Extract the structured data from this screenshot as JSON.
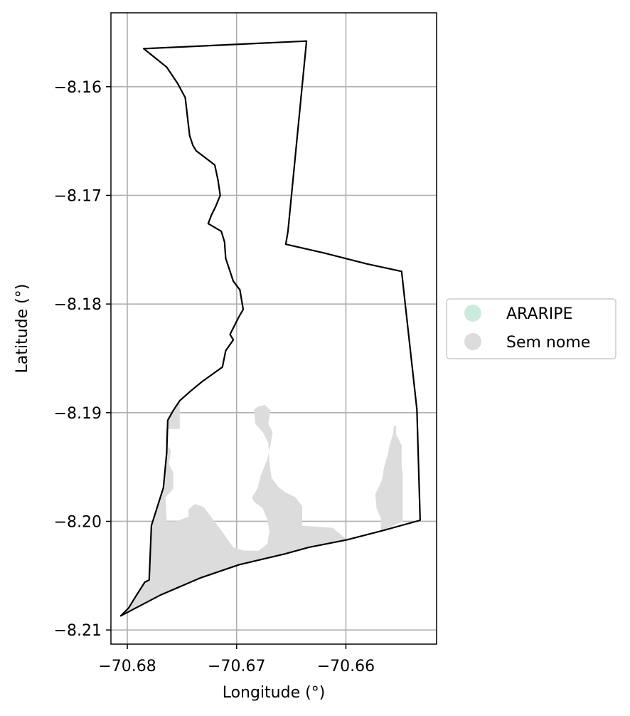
{
  "chart_data": {
    "type": "map",
    "xlabel": "Longitude (°)",
    "ylabel": "Latitude (°)",
    "xlim": [
      -70.6815,
      -70.6517
    ],
    "ylim": [
      -8.2113,
      -8.1532
    ],
    "x_ticks": [
      {
        "value": -70.68,
        "label": "−70.68"
      },
      {
        "value": -70.67,
        "label": "−70.67"
      },
      {
        "value": -70.66,
        "label": "−70.66"
      }
    ],
    "y_ticks": [
      {
        "value": -8.16,
        "label": "−8.16"
      },
      {
        "value": -8.17,
        "label": "−8.17"
      },
      {
        "value": -8.18,
        "label": "−8.18"
      },
      {
        "value": -8.19,
        "label": "−8.19"
      },
      {
        "value": -8.2,
        "label": "−8.20"
      },
      {
        "value": -8.21,
        "label": "−8.21"
      }
    ],
    "grid": true,
    "legend": {
      "placement": "right",
      "entries": [
        {
          "label": "ARARIPE",
          "color": "#cdebdc"
        },
        {
          "label": "Sem nome",
          "color": "#dcdcdc"
        }
      ]
    },
    "boundary": {
      "stroke": "#000000",
      "coords": [
        [
          -70.6785,
          -8.1565
        ],
        [
          -70.6636,
          -8.1558
        ],
        [
          -70.6653,
          -8.1733
        ],
        [
          -70.6655,
          -8.1745
        ],
        [
          -70.662,
          -8.1753
        ],
        [
          -70.6581,
          -8.1763
        ],
        [
          -70.6549,
          -8.177
        ],
        [
          -70.6535,
          -8.1897
        ],
        [
          -70.6532,
          -8.1999
        ],
        [
          -70.6568,
          -8.2009
        ],
        [
          -70.6599,
          -8.2017
        ],
        [
          -70.6634,
          -8.2024
        ],
        [
          -70.6656,
          -8.203
        ],
        [
          -70.6698,
          -8.204
        ],
        [
          -70.6733,
          -8.2052
        ],
        [
          -70.677,
          -8.2068
        ],
        [
          -70.6806,
          -8.2087
        ],
        [
          -70.6799,
          -8.208
        ],
        [
          -70.6791,
          -8.2067
        ],
        [
          -70.6784,
          -8.2056
        ],
        [
          -70.678,
          -8.2054
        ],
        [
          -70.6778,
          -8.2004
        ],
        [
          -70.6767,
          -8.1969
        ],
        [
          -70.6764,
          -8.1937
        ],
        [
          -70.6763,
          -8.1907
        ],
        [
          -70.6758,
          -8.1898
        ],
        [
          -70.6752,
          -8.1889
        ],
        [
          -70.6742,
          -8.188
        ],
        [
          -70.6731,
          -8.1871
        ],
        [
          -70.6724,
          -8.1866
        ],
        [
          -70.6713,
          -8.1858
        ],
        [
          -70.671,
          -8.1843
        ],
        [
          -70.6703,
          -8.1833
        ],
        [
          -70.6706,
          -8.1828
        ],
        [
          -70.6703,
          -8.1822
        ],
        [
          -70.6698,
          -8.1812
        ],
        [
          -70.6694,
          -8.1805
        ],
        [
          -70.6697,
          -8.1787
        ],
        [
          -70.6703,
          -8.1779
        ],
        [
          -70.671,
          -8.1758
        ],
        [
          -70.6711,
          -8.1743
        ],
        [
          -70.6714,
          -8.1733
        ],
        [
          -70.6726,
          -8.1726
        ],
        [
          -70.6723,
          -8.1718
        ],
        [
          -70.6719,
          -8.171
        ],
        [
          -70.6715,
          -8.17
        ],
        [
          -70.6717,
          -8.1686
        ],
        [
          -70.672,
          -8.1672
        ],
        [
          -70.6737,
          -8.1659
        ],
        [
          -70.674,
          -8.1654
        ],
        [
          -70.6743,
          -8.1645
        ],
        [
          -70.6747,
          -8.161
        ],
        [
          -70.6754,
          -8.1597
        ],
        [
          -70.6764,
          -8.1582
        ],
        [
          -70.6785,
          -8.1565
        ]
      ]
    },
    "areas": [
      {
        "name": "Sem nome",
        "fill": "#dcdcdc",
        "polygons": [
          [
            [
              -70.6806,
              -8.2087
            ],
            [
              -70.6799,
              -8.208
            ],
            [
              -70.6791,
              -8.2067
            ],
            [
              -70.6784,
              -8.2056
            ],
            [
              -70.678,
              -8.2054
            ],
            [
              -70.6778,
              -8.2004
            ],
            [
              -70.6767,
              -8.1969
            ],
            [
              -70.6764,
              -8.1937
            ],
            [
              -70.6763,
              -8.1907
            ],
            [
              -70.6758,
              -8.1898
            ],
            [
              -70.6752,
              -8.1889
            ],
            [
              -70.6752,
              -8.1915
            ],
            [
              -70.6765,
              -8.1915
            ],
            [
              -70.6765,
              -8.1927
            ],
            [
              -70.676,
              -8.1935
            ],
            [
              -70.6762,
              -8.1947
            ],
            [
              -70.6758,
              -8.1955
            ],
            [
              -70.6758,
              -8.197
            ],
            [
              -70.6765,
              -8.1978
            ],
            [
              -70.6764,
              -8.2
            ],
            [
              -70.6756,
              -8.2
            ],
            [
              -70.6744,
              -8.1996
            ],
            [
              -70.6744,
              -8.1989
            ],
            [
              -70.6738,
              -8.1984
            ],
            [
              -70.673,
              -8.1987
            ],
            [
              -70.6724,
              -8.1995
            ],
            [
              -70.6718,
              -8.2003
            ],
            [
              -70.671,
              -8.2014
            ],
            [
              -70.6703,
              -8.2024
            ],
            [
              -70.6693,
              -8.2027
            ],
            [
              -70.668,
              -8.2027
            ],
            [
              -70.6672,
              -8.2021
            ],
            [
              -70.667,
              -8.2009
            ],
            [
              -70.6672,
              -8.1998
            ],
            [
              -70.6676,
              -8.1988
            ],
            [
              -70.6684,
              -8.1982
            ],
            [
              -70.6686,
              -8.1978
            ],
            [
              -70.6681,
              -8.197
            ],
            [
              -70.6678,
              -8.1958
            ],
            [
              -70.6672,
              -8.1943
            ],
            [
              -70.6669,
              -8.193
            ],
            [
              -70.6667,
              -8.1918
            ],
            [
              -70.6671,
              -8.191
            ],
            [
              -70.6669,
              -8.1898
            ],
            [
              -70.6674,
              -8.1893
            ],
            [
              -70.668,
              -8.1894
            ],
            [
              -70.6684,
              -8.1897
            ],
            [
              -70.6683,
              -8.191
            ],
            [
              -70.6676,
              -8.1918
            ],
            [
              -70.6671,
              -8.1928
            ],
            [
              -70.667,
              -8.1945
            ],
            [
              -70.6668,
              -8.196
            ],
            [
              -70.6662,
              -8.1968
            ],
            [
              -70.6656,
              -8.1973
            ],
            [
              -70.6646,
              -8.1978
            ],
            [
              -70.664,
              -8.1986
            ],
            [
              -70.664,
              -8.2004
            ],
            [
              -70.6612,
              -8.2006
            ],
            [
              -70.6599,
              -8.2017
            ],
            [
              -70.6634,
              -8.2024
            ],
            [
              -70.6656,
              -8.203
            ],
            [
              -70.6698,
              -8.204
            ],
            [
              -70.6733,
              -8.2052
            ],
            [
              -70.677,
              -8.2068
            ],
            [
              -70.6806,
              -8.2087
            ]
          ],
          [
            [
              -70.6568,
              -8.2009
            ],
            [
              -70.6568,
              -8.1997
            ],
            [
              -70.6572,
              -8.1988
            ],
            [
              -70.6573,
              -8.1975
            ],
            [
              -70.6567,
              -8.1962
            ],
            [
              -70.6565,
              -8.195
            ],
            [
              -70.6562,
              -8.194
            ],
            [
              -70.656,
              -8.193
            ],
            [
              -70.6557,
              -8.192
            ],
            [
              -70.6556,
              -8.1912
            ],
            [
              -70.6554,
              -8.1912
            ],
            [
              -70.6554,
              -8.192
            ],
            [
              -70.6549,
              -8.193
            ],
            [
              -70.6549,
              -8.1947
            ],
            [
              -70.6548,
              -8.1958
            ],
            [
              -70.6548,
              -8.2
            ],
            [
              -70.6568,
              -8.2009
            ]
          ]
        ]
      }
    ]
  }
}
